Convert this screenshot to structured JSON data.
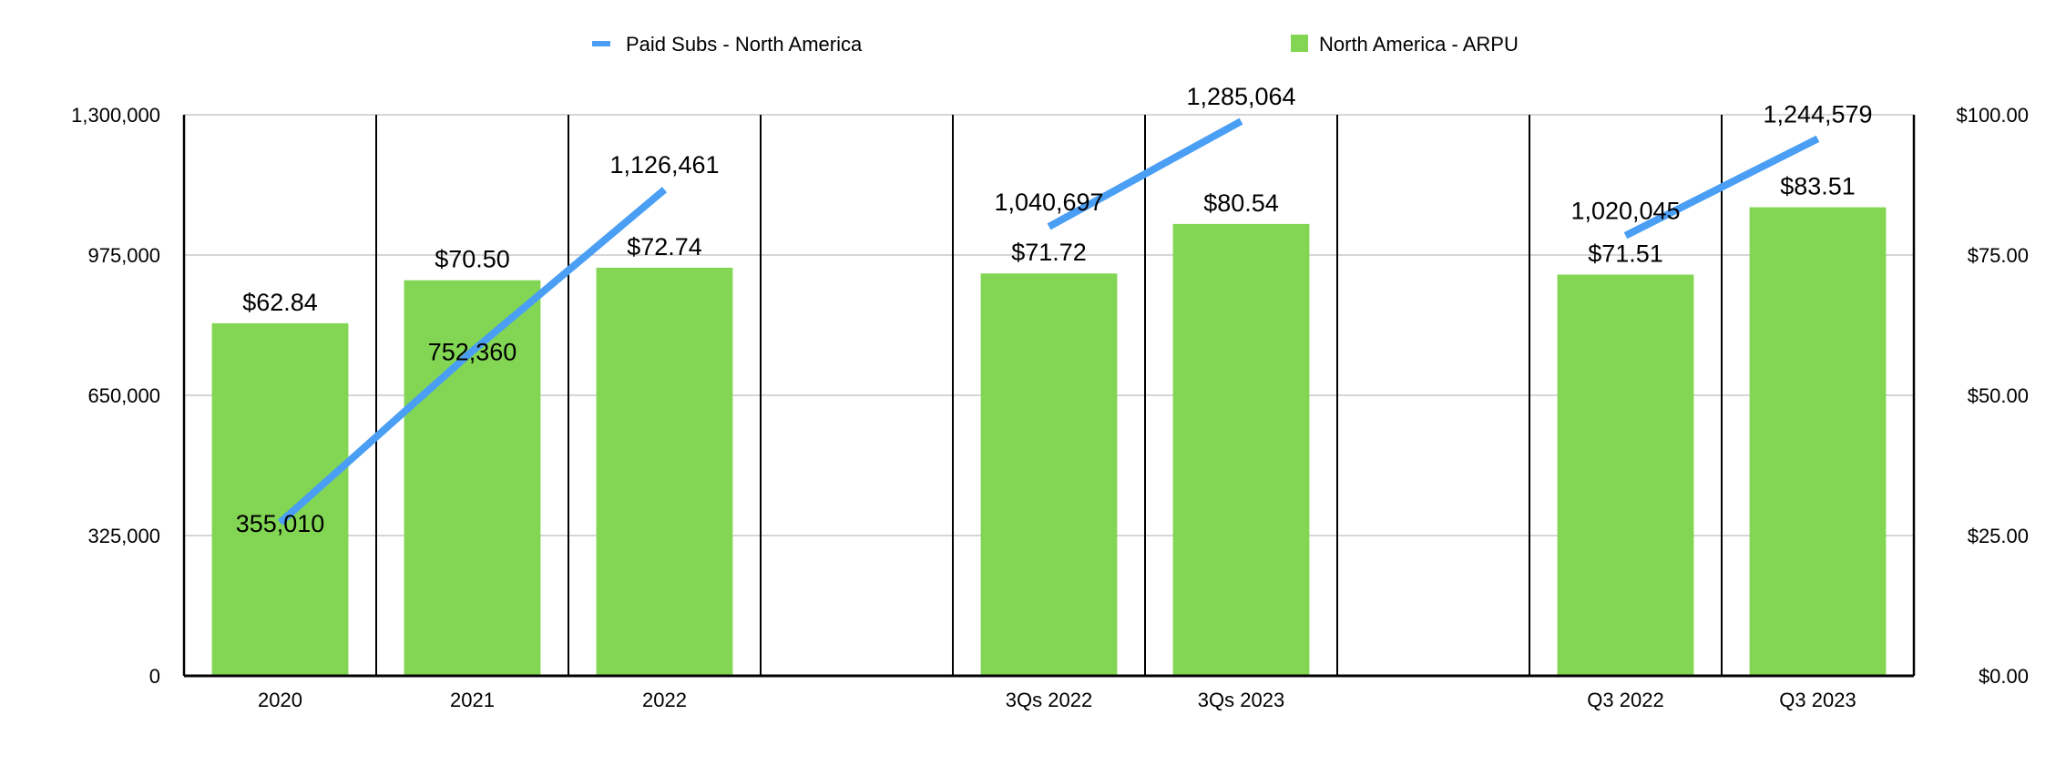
{
  "chart_data": {
    "type": "bar",
    "categories": [
      "2020",
      "2021",
      "2022",
      "",
      "3Qs 2022",
      "3Qs 2023",
      "",
      "Q3 2022",
      "Q3 2023"
    ],
    "series": [
      {
        "name": "North America - ARPU",
        "type": "bar",
        "axis": "right",
        "color": "#83d653",
        "values": [
          62.84,
          70.5,
          72.74,
          null,
          71.72,
          80.54,
          null,
          71.51,
          83.51
        ],
        "labels": [
          "$62.84",
          "$70.50",
          "$72.74",
          "",
          "$71.72",
          "$80.54",
          "",
          "$71.51",
          "$83.51"
        ]
      },
      {
        "name": "Paid Subs - North America",
        "type": "line",
        "axis": "left",
        "color": "#4a9ff5",
        "values": [
          355010,
          752360,
          1126461,
          null,
          1040697,
          1285064,
          null,
          1020045,
          1244579
        ],
        "labels": [
          "355,010",
          "752,360",
          "1,126,461",
          "",
          "1,040,697",
          "1,285,064",
          "",
          "1,020,045",
          "1,244,579"
        ]
      }
    ],
    "left_axis": {
      "ylim": [
        0,
        1300000
      ],
      "ticks": [
        "0",
        "325,000",
        "650,000",
        "975,000",
        "1,300,000"
      ]
    },
    "right_axis": {
      "ylim": [
        0,
        100
      ],
      "ticks": [
        "$0.00",
        "$25.00",
        "$50.00",
        "$75.00",
        "$100.00"
      ]
    },
    "legend": {
      "placement": "top",
      "items": [
        "Paid Subs - North America",
        "North America - ARPU"
      ]
    },
    "grid": true
  }
}
